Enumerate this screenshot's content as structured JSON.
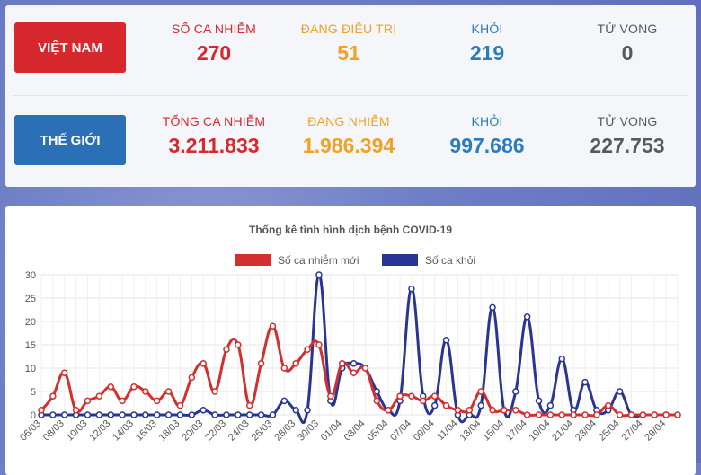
{
  "vietnam": {
    "label": "VIỆT NAM",
    "stats": [
      {
        "label": "SỐ CA NHIỄM",
        "value": "270",
        "color": "#d7282e"
      },
      {
        "label": "ĐANG ĐIỀU TRỊ",
        "value": "51",
        "color": "#f1a125"
      },
      {
        "label": "KHỎI",
        "value": "219",
        "color": "#2b7bbf"
      },
      {
        "label": "TỬ VONG",
        "value": "0",
        "color": "#555a60"
      }
    ]
  },
  "world": {
    "label": "THẾ GIỚI",
    "stats": [
      {
        "label": "TỔNG CA NHIỄM",
        "value": "3.211.833",
        "color": "#d7282e"
      },
      {
        "label": "ĐANG NHIỄM",
        "value": "1.986.394",
        "color": "#f1a125"
      },
      {
        "label": "KHỎI",
        "value": "997.686",
        "color": "#2b7bbf"
      },
      {
        "label": "TỬ VONG",
        "value": "227.753",
        "color": "#555a60"
      }
    ]
  },
  "chart_data": {
    "type": "line",
    "title": "Thống kê tình hình dịch bệnh COVID-19",
    "legend_position": "top",
    "ylim": [
      0,
      30
    ],
    "yticks": [
      0,
      5,
      10,
      15,
      20,
      25,
      30
    ],
    "grid": true,
    "x": [
      "06/03",
      "07/03",
      "08/03",
      "09/03",
      "10/03",
      "11/03",
      "12/03",
      "13/03",
      "14/03",
      "15/03",
      "16/03",
      "17/03",
      "18/03",
      "19/03",
      "20/03",
      "21/03",
      "22/03",
      "23/03",
      "24/03",
      "25/03",
      "26/03",
      "27/03",
      "28/03",
      "29/03",
      "30/03",
      "31/03",
      "01/04",
      "02/04",
      "03/04",
      "04/04",
      "05/04",
      "06/04",
      "07/04",
      "08/04",
      "09/04",
      "10/04",
      "11/04",
      "12/04",
      "13/04",
      "14/04",
      "15/04",
      "16/04",
      "17/04",
      "18/04",
      "19/04",
      "20/04",
      "21/04",
      "22/04",
      "23/04",
      "24/04",
      "25/04",
      "26/04",
      "27/04",
      "28/04",
      "29/04",
      "30/04"
    ],
    "xtick_labels": [
      "06/03",
      "08/03",
      "10/03",
      "12/03",
      "14/03",
      "16/03",
      "18/03",
      "20/03",
      "22/03",
      "24/03",
      "26/03",
      "28/03",
      "30/03",
      "01/04",
      "03/04",
      "05/04",
      "07/04",
      "09/04",
      "11/04",
      "13/04",
      "15/04",
      "17/04",
      "19/04",
      "21/04",
      "23/04",
      "25/04",
      "27/04",
      "29/04"
    ],
    "series": [
      {
        "name": "Số ca nhiễm mới",
        "color": "#d32f2f",
        "values": [
          1,
          4,
          9,
          1,
          3,
          4,
          6,
          3,
          6,
          5,
          3,
          5,
          2,
          8,
          11,
          5,
          14,
          15,
          2,
          11,
          19,
          10,
          11,
          14,
          15,
          4,
          11,
          9,
          10,
          3,
          1,
          4,
          4,
          3,
          4,
          2,
          1,
          1,
          5,
          1,
          1,
          1,
          0,
          0,
          0,
          0,
          0,
          0,
          0,
          2,
          0,
          0,
          0,
          0,
          0,
          0
        ]
      },
      {
        "name": "Số ca khỏi",
        "color": "#283593",
        "values": [
          0,
          0,
          0,
          0,
          0,
          0,
          0,
          0,
          0,
          0,
          0,
          0,
          0,
          0,
          1,
          0,
          0,
          0,
          0,
          0,
          0,
          3,
          1,
          1,
          30,
          3,
          10,
          11,
          10,
          5,
          1,
          3,
          27,
          4,
          2,
          16,
          0,
          0,
          2,
          23,
          1,
          5,
          21,
          3,
          2,
          12,
          1,
          7,
          1,
          1,
          5,
          0,
          0,
          0,
          0,
          0
        ]
      }
    ]
  }
}
